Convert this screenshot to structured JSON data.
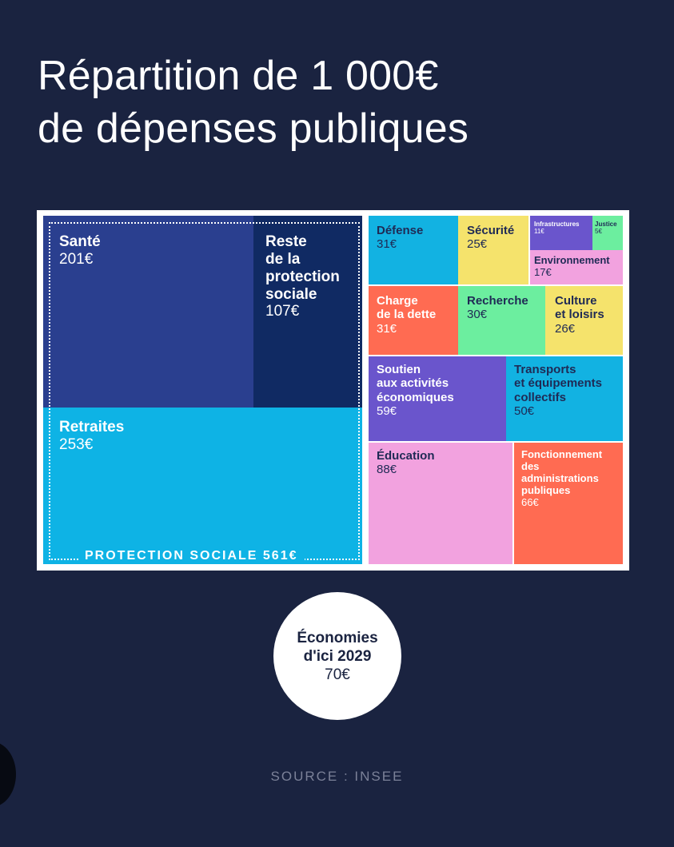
{
  "title": {
    "line1": "Répartition de 1 000€",
    "line2": "de dépenses publiques"
  },
  "chart_data": {
    "type": "treemap",
    "title": "Répartition de 1 000€ de dépenses publiques",
    "unit": "€",
    "total": 1000,
    "groups": [
      {
        "name": "PROTECTION SOCIALE",
        "value": 561,
        "label": "PROTECTION SOCIALE 561€"
      }
    ],
    "items": [
      {
        "id": "sante",
        "name": "Santé",
        "value": 201,
        "value_label": "201€",
        "group": "PROTECTION SOCIALE",
        "color": "#2a3f8f"
      },
      {
        "id": "reste",
        "name": "Reste\nde la\nprotection\nsociale",
        "value": 107,
        "value_label": "107€",
        "group": "PROTECTION SOCIALE",
        "color": "#102a63"
      },
      {
        "id": "retraites",
        "name": "Retraites",
        "value": 253,
        "value_label": "253€",
        "group": "PROTECTION SOCIALE",
        "color": "#0eb3e5"
      },
      {
        "id": "defense",
        "name": "Défense",
        "value": 31,
        "value_label": "31€",
        "color": "#12b2e2"
      },
      {
        "id": "securite",
        "name": "Sécurité",
        "value": 25,
        "value_label": "25€",
        "color": "#f5e36c"
      },
      {
        "id": "infrastructures",
        "name": "Infrastructures",
        "value": 11,
        "value_label": "11€",
        "color": "#6a55cc"
      },
      {
        "id": "justice",
        "name": "Justice",
        "value": 5,
        "value_label": "5€",
        "color": "#6cee9f"
      },
      {
        "id": "environnement",
        "name": "Environnement",
        "value": 17,
        "value_label": "17€",
        "color": "#f2a2df"
      },
      {
        "id": "dette",
        "name": "Charge\nde la dette",
        "value": 31,
        "value_label": "31€",
        "color": "#ff6b52"
      },
      {
        "id": "recherche",
        "name": "Recherche",
        "value": 30,
        "value_label": "30€",
        "color": "#6cee9f"
      },
      {
        "id": "culture",
        "name": "Culture\net loisirs",
        "value": 26,
        "value_label": "26€",
        "color": "#f5e36c"
      },
      {
        "id": "soutien",
        "name": "Soutien\naux activités\néconomiques",
        "value": 59,
        "value_label": "59€",
        "color": "#6a55cc"
      },
      {
        "id": "transports",
        "name": "Transports\net équipements\ncollectifs",
        "value": 50,
        "value_label": "50€",
        "color": "#12b2e2"
      },
      {
        "id": "education",
        "name": "Éducation",
        "value": 88,
        "value_label": "88€",
        "color": "#f2a2df"
      },
      {
        "id": "fonctionnement",
        "name": "Fonctionnement\ndes\nadministrations\npubliques",
        "value": 66,
        "value_label": "66€",
        "color": "#ff6b52"
      }
    ]
  },
  "savings": {
    "line1": "Économies",
    "line2": "d'ici 2029",
    "value": "70€"
  },
  "source": "SOURCE : INSEE",
  "colors": {
    "background": "#1a2340",
    "frame": "#ffffff"
  }
}
